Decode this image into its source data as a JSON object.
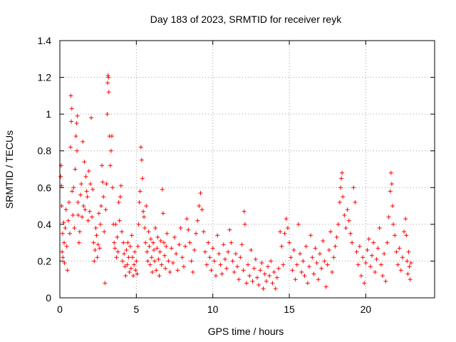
{
  "chart_data": {
    "type": "scatter",
    "title": "Day 183 of 2023, SRMTID for receiver reyk",
    "xlabel": "GPS time / hours",
    "ylabel": "SRMTID / TECUs",
    "xlim": [
      0,
      24.5
    ],
    "ylim": [
      0,
      1.4
    ],
    "x_ticks": [
      0,
      5,
      10,
      15,
      20
    ],
    "x_tick_labels": [
      "0",
      "5",
      "10",
      "15",
      "20"
    ],
    "y_ticks": [
      0,
      0.2,
      0.4,
      0.6,
      0.8,
      1.0,
      1.2,
      1.4
    ],
    "y_tick_labels": [
      "0",
      "0.2",
      "0.4",
      "0.6",
      "0.8",
      "1",
      "1.2",
      "1.4"
    ],
    "grid": true,
    "marker": "plus",
    "color": "#ff0000",
    "series": [
      {
        "name": "SRMTID",
        "points": [
          [
            0.05,
            0.66
          ],
          [
            0.08,
            0.72
          ],
          [
            0.1,
            0.61
          ],
          [
            0.12,
            0.5
          ],
          [
            0.15,
            0.25
          ],
          [
            0.18,
            0.35
          ],
          [
            0.2,
            0.22
          ],
          [
            0.25,
            0.41
          ],
          [
            0.28,
            0.3
          ],
          [
            0.3,
            0.19
          ],
          [
            0.35,
            0.38
          ],
          [
            0.4,
            0.48
          ],
          [
            0.45,
            0.28
          ],
          [
            0.5,
            0.15
          ],
          [
            0.55,
            0.42
          ],
          [
            0.6,
            0.52
          ],
          [
            0.65,
            0.35
          ],
          [
            0.7,
            0.82
          ],
          [
            0.72,
            1.1
          ],
          [
            0.75,
            0.96
          ],
          [
            0.78,
            1.03
          ],
          [
            0.8,
            0.58
          ],
          [
            0.85,
            0.45
          ],
          [
            0.9,
            0.6
          ],
          [
            0.95,
            0.38
          ],
          [
            1.0,
            0.7
          ],
          [
            1.05,
            0.88
          ],
          [
            1.1,
            0.95
          ],
          [
            1.12,
            0.8
          ],
          [
            1.15,
            0.99
          ],
          [
            1.18,
            0.52
          ],
          [
            1.2,
            0.45
          ],
          [
            1.25,
            0.3
          ],
          [
            1.3,
            0.36
          ],
          [
            1.35,
            0.56
          ],
          [
            1.4,
            0.62
          ],
          [
            1.45,
            0.44
          ],
          [
            1.5,
            0.85
          ],
          [
            1.55,
            0.5
          ],
          [
            1.6,
            0.74
          ],
          [
            1.65,
            0.48
          ],
          [
            1.7,
            0.66
          ],
          [
            1.75,
            0.58
          ],
          [
            1.8,
            0.55
          ],
          [
            1.85,
            0.42
          ],
          [
            1.9,
            0.69
          ],
          [
            1.95,
            0.47
          ],
          [
            2.0,
            0.62
          ],
          [
            2.05,
            0.98
          ],
          [
            2.1,
            0.44
          ],
          [
            2.15,
            0.59
          ],
          [
            2.2,
            0.3
          ],
          [
            2.25,
            0.2
          ],
          [
            2.3,
            0.26
          ],
          [
            2.35,
            0.38
          ],
          [
            2.4,
            0.34
          ],
          [
            2.45,
            0.22
          ],
          [
            2.5,
            0.29
          ],
          [
            2.55,
            0.46
          ],
          [
            2.6,
            0.27
          ],
          [
            2.65,
            0.4
          ],
          [
            2.7,
            0.5
          ],
          [
            2.75,
            0.72
          ],
          [
            2.8,
            0.63
          ],
          [
            2.85,
            0.55
          ],
          [
            2.9,
            0.36
          ],
          [
            2.95,
            0.08
          ],
          [
            3.0,
            0.48
          ],
          [
            3.05,
            0.62
          ],
          [
            3.1,
            1.0
          ],
          [
            3.12,
            1.17
          ],
          [
            3.15,
            1.21
          ],
          [
            3.18,
            1.2
          ],
          [
            3.2,
            1.12
          ],
          [
            3.25,
            0.88
          ],
          [
            3.3,
            0.72
          ],
          [
            3.35,
            0.8
          ],
          [
            3.4,
            0.88
          ],
          [
            3.45,
            0.6
          ],
          [
            3.5,
            0.4
          ],
          [
            3.55,
            0.3
          ],
          [
            3.6,
            0.27
          ],
          [
            3.65,
            0.4
          ],
          [
            3.7,
            0.22
          ],
          [
            3.75,
            0.33
          ],
          [
            3.8,
            0.25
          ],
          [
            3.85,
            0.52
          ],
          [
            3.9,
            0.42
          ],
          [
            3.95,
            0.55
          ],
          [
            4.0,
            0.61
          ],
          [
            4.05,
            0.36
          ],
          [
            4.1,
            0.2
          ],
          [
            4.15,
            0.3
          ],
          [
            4.2,
            0.24
          ],
          [
            4.25,
            0.17
          ],
          [
            4.3,
            0.12
          ],
          [
            4.35,
            0.26
          ],
          [
            4.4,
            0.18
          ],
          [
            4.45,
            0.3
          ],
          [
            4.5,
            0.22
          ],
          [
            4.55,
            0.14
          ],
          [
            4.6,
            0.28
          ],
          [
            4.65,
            0.16
          ],
          [
            4.7,
            0.34
          ],
          [
            4.75,
            0.22
          ],
          [
            4.8,
            0.12
          ],
          [
            4.85,
            0.18
          ],
          [
            4.9,
            0.25
          ],
          [
            4.95,
            0.15
          ],
          [
            5.0,
            0.2
          ],
          [
            5.05,
            0.13
          ],
          [
            5.1,
            0.28
          ],
          [
            5.15,
            0.4
          ],
          [
            5.2,
            0.52
          ],
          [
            5.25,
            0.58
          ],
          [
            5.3,
            0.82
          ],
          [
            5.35,
            0.75
          ],
          [
            5.4,
            0.65
          ],
          [
            5.45,
            0.47
          ],
          [
            5.5,
            0.44
          ],
          [
            5.55,
            0.38
          ],
          [
            5.6,
            0.3
          ],
          [
            5.65,
            0.5
          ],
          [
            5.7,
            0.25
          ],
          [
            5.75,
            0.2
          ],
          [
            5.8,
            0.36
          ],
          [
            5.85,
            0.28
          ],
          [
            5.9,
            0.18
          ],
          [
            5.95,
            0.32
          ],
          [
            6.0,
            0.22
          ],
          [
            6.05,
            0.14
          ],
          [
            6.1,
            0.3
          ],
          [
            6.15,
            0.26
          ],
          [
            6.2,
            0.2
          ],
          [
            6.25,
            0.38
          ],
          [
            6.3,
            0.15
          ],
          [
            6.35,
            0.27
          ],
          [
            6.4,
            0.33
          ],
          [
            6.45,
            0.21
          ],
          [
            6.5,
            0.12
          ],
          [
            6.55,
            0.25
          ],
          [
            6.6,
            0.31
          ],
          [
            6.65,
            0.18
          ],
          [
            6.7,
            0.59
          ],
          [
            6.75,
            0.46
          ],
          [
            6.8,
            0.3
          ],
          [
            6.85,
            0.23
          ],
          [
            6.9,
            0.16
          ],
          [
            6.95,
            0.28
          ],
          [
            7.0,
            0.35
          ],
          [
            7.1,
            0.2
          ],
          [
            7.2,
            0.14
          ],
          [
            7.3,
            0.27
          ],
          [
            7.4,
            0.19
          ],
          [
            7.5,
            0.33
          ],
          [
            7.6,
            0.24
          ],
          [
            7.7,
            0.15
          ],
          [
            7.8,
            0.29
          ],
          [
            7.9,
            0.38
          ],
          [
            8.0,
            0.22
          ],
          [
            8.1,
            0.17
          ],
          [
            8.2,
            0.28
          ],
          [
            8.3,
            0.43
          ],
          [
            8.4,
            0.37
          ],
          [
            8.5,
            0.3
          ],
          [
            8.6,
            0.2
          ],
          [
            8.7,
            0.14
          ],
          [
            8.8,
            0.26
          ],
          [
            8.9,
            0.35
          ],
          [
            9.0,
            0.42
          ],
          [
            9.1,
            0.5
          ],
          [
            9.2,
            0.57
          ],
          [
            9.3,
            0.48
          ],
          [
            9.4,
            0.36
          ],
          [
            9.5,
            0.25
          ],
          [
            9.6,
            0.18
          ],
          [
            9.7,
            0.3
          ],
          [
            9.8,
            0.22
          ],
          [
            9.9,
            0.15
          ],
          [
            10.0,
            0.27
          ],
          [
            10.1,
            0.2
          ],
          [
            10.2,
            0.12
          ],
          [
            10.3,
            0.34
          ],
          [
            10.4,
            0.24
          ],
          [
            10.5,
            0.18
          ],
          [
            10.6,
            0.13
          ],
          [
            10.7,
            0.29
          ],
          [
            10.8,
            0.21
          ],
          [
            10.9,
            0.16
          ],
          [
            11.0,
            0.25
          ],
          [
            11.1,
            0.37
          ],
          [
            11.2,
            0.3
          ],
          [
            11.3,
            0.2
          ],
          [
            11.4,
            0.14
          ],
          [
            11.5,
            0.24
          ],
          [
            11.6,
            0.17
          ],
          [
            11.7,
            0.1
          ],
          [
            11.8,
            0.22
          ],
          [
            11.9,
            0.29
          ],
          [
            12.0,
            0.15
          ],
          [
            12.05,
            0.47
          ],
          [
            12.1,
            0.4
          ],
          [
            12.2,
            0.08
          ],
          [
            12.3,
            0.18
          ],
          [
            12.4,
            0.12
          ],
          [
            12.5,
            0.26
          ],
          [
            12.6,
            0.09
          ],
          [
            12.7,
            0.16
          ],
          [
            12.8,
            0.21
          ],
          [
            12.9,
            0.11
          ],
          [
            13.0,
            0.07
          ],
          [
            13.1,
            0.15
          ],
          [
            13.2,
            0.19
          ],
          [
            13.3,
            0.05
          ],
          [
            13.4,
            0.13
          ],
          [
            13.5,
            0.09
          ],
          [
            13.6,
            0.17
          ],
          [
            13.7,
            0.12
          ],
          [
            13.8,
            0.2
          ],
          [
            13.9,
            0.08
          ],
          [
            14.0,
            0.14
          ],
          [
            14.1,
            0.05
          ],
          [
            14.2,
            0.11
          ],
          [
            14.3,
            0.16
          ],
          [
            14.4,
            0.36
          ],
          [
            14.5,
            0.28
          ],
          [
            14.6,
            0.18
          ],
          [
            14.7,
            0.35
          ],
          [
            14.8,
            0.43
          ],
          [
            14.9,
            0.38
          ],
          [
            15.0,
            0.3
          ],
          [
            15.1,
            0.22
          ],
          [
            15.2,
            0.15
          ],
          [
            15.3,
            0.26
          ],
          [
            15.4,
            0.1
          ],
          [
            15.5,
            0.18
          ],
          [
            15.6,
            0.4
          ],
          [
            15.7,
            0.24
          ],
          [
            15.8,
            0.14
          ],
          [
            15.9,
            0.2
          ],
          [
            16.0,
            0.12
          ],
          [
            16.1,
            0.28
          ],
          [
            16.2,
            0.08
          ],
          [
            16.3,
            0.17
          ],
          [
            16.4,
            0.34
          ],
          [
            16.5,
            0.22
          ],
          [
            16.6,
            0.13
          ],
          [
            16.7,
            0.27
          ],
          [
            16.8,
            0.19
          ],
          [
            16.9,
            0.1
          ],
          [
            17.0,
            0.24
          ],
          [
            17.1,
            0.16
          ],
          [
            17.2,
            0.31
          ],
          [
            17.3,
            0.2
          ],
          [
            17.4,
            0.06
          ],
          [
            17.5,
            0.18
          ],
          [
            17.6,
            0.26
          ],
          [
            17.7,
            0.36
          ],
          [
            17.8,
            0.14
          ],
          [
            17.9,
            0.22
          ],
          [
            18.0,
            0.28
          ],
          [
            18.1,
            0.33
          ],
          [
            18.2,
            0.4
          ],
          [
            18.3,
            0.52
          ],
          [
            18.35,
            0.6
          ],
          [
            18.4,
            0.65
          ],
          [
            18.45,
            0.68
          ],
          [
            18.5,
            0.55
          ],
          [
            18.6,
            0.45
          ],
          [
            18.7,
            0.38
          ],
          [
            18.8,
            0.48
          ],
          [
            18.9,
            0.42
          ],
          [
            19.0,
            0.35
          ],
          [
            19.1,
            0.3
          ],
          [
            19.2,
            0.6
          ],
          [
            19.3,
            0.52
          ],
          [
            19.4,
            0.25
          ],
          [
            19.5,
            0.18
          ],
          [
            19.6,
            0.28
          ],
          [
            19.7,
            0.12
          ],
          [
            19.8,
            0.22
          ],
          [
            19.9,
            0.08
          ],
          [
            20.0,
            0.19
          ],
          [
            20.1,
            0.26
          ],
          [
            20.2,
            0.32
          ],
          [
            20.3,
            0.17
          ],
          [
            20.4,
            0.23
          ],
          [
            20.5,
            0.3
          ],
          [
            20.6,
            0.14
          ],
          [
            20.7,
            0.21
          ],
          [
            20.8,
            0.27
          ],
          [
            20.9,
            0.38
          ],
          [
            21.0,
            0.18
          ],
          [
            21.1,
            0.12
          ],
          [
            21.2,
            0.24
          ],
          [
            21.3,
            0.09
          ],
          [
            21.4,
            0.3
          ],
          [
            21.5,
            0.44
          ],
          [
            21.6,
            0.58
          ],
          [
            21.65,
            0.68
          ],
          [
            21.7,
            0.62
          ],
          [
            21.75,
            0.5
          ],
          [
            21.8,
            0.4
          ],
          [
            21.9,
            0.34
          ],
          [
            22.0,
            0.25
          ],
          [
            22.1,
            0.18
          ],
          [
            22.2,
            0.27
          ],
          [
            22.3,
            0.15
          ],
          [
            22.4,
            0.22
          ],
          [
            22.5,
            0.36
          ],
          [
            22.6,
            0.43
          ],
          [
            22.65,
            0.34
          ],
          [
            22.7,
            0.2
          ],
          [
            22.75,
            0.13
          ],
          [
            22.8,
            0.25
          ],
          [
            22.85,
            0.17
          ],
          [
            22.9,
            0.1
          ],
          [
            22.95,
            0.19
          ]
        ]
      }
    ]
  }
}
